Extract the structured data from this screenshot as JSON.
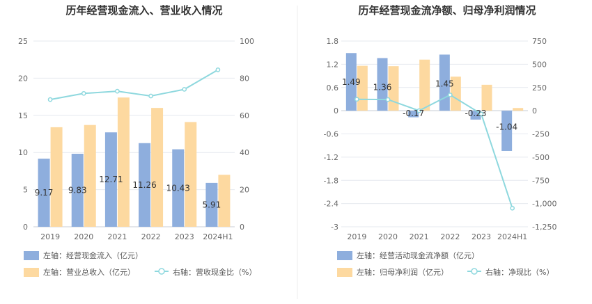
{
  "colors": {
    "blue": "#8eaedd",
    "orange": "#fdd9a0",
    "line": "#8ed8de",
    "grid": "#e6e9ef",
    "divider": "#eeeeee"
  },
  "chart_data": [
    {
      "type": "bar",
      "title": "历年经营现金流入、营业收入情况",
      "categories": [
        "2019",
        "2020",
        "2021",
        "2022",
        "2023",
        "2024H1"
      ],
      "y_left_ticks": [
        "25",
        "20",
        "15",
        "10",
        "5",
        "0"
      ],
      "y_right_ticks": [
        "100",
        "80",
        "60",
        "40",
        "20",
        "0"
      ],
      "ylim_left": [
        0,
        25
      ],
      "ylim_right": [
        0,
        100
      ],
      "series": [
        {
          "name": "左轴：经营现金流入（亿元）",
          "axis": "left",
          "kind": "bar",
          "values": [
            9.17,
            9.83,
            12.71,
            11.26,
            10.43,
            5.91
          ],
          "labels": [
            "9.17",
            "9.83",
            "12.71",
            "11.26",
            "10.43",
            "5.91"
          ]
        },
        {
          "name": "左轴：营业总收入（亿元）",
          "axis": "left",
          "kind": "bar",
          "values": [
            13.4,
            13.7,
            17.4,
            16.0,
            14.1,
            7.0
          ]
        },
        {
          "name": "右轴：营收现金比（%）",
          "axis": "right",
          "kind": "line",
          "values": [
            68.5,
            71.8,
            73.0,
            70.4,
            74.0,
            84.5
          ]
        }
      ]
    },
    {
      "type": "bar",
      "title": "历年经营现金流净额、归母净利润情况",
      "categories": [
        "2019",
        "2020",
        "2021",
        "2022",
        "2023",
        "2024H1"
      ],
      "y_left_ticks": [
        "1.8",
        "1.2",
        "0.6",
        "0",
        "-0.6",
        "-1.2",
        "-1.8",
        "-2.4",
        "-3"
      ],
      "y_right_ticks": [
        "750",
        "500",
        "250",
        "0",
        "-250",
        "-500",
        "-750",
        "-1,000",
        "-1,250"
      ],
      "ylim_left": [
        -3,
        1.8
      ],
      "ylim_right": [
        -1250,
        750
      ],
      "series": [
        {
          "name": "左轴：经营活动现金流净额（亿元）",
          "axis": "left",
          "kind": "bar",
          "values": [
            1.49,
            1.36,
            -0.17,
            1.45,
            -0.23,
            -1.04
          ],
          "labels": [
            "1.49",
            "1.36",
            "-0.17",
            "1.45",
            "-0.23",
            "-1.04"
          ]
        },
        {
          "name": "左轴：归母净利润（亿元）",
          "axis": "left",
          "kind": "bar",
          "values": [
            1.16,
            1.15,
            1.32,
            0.88,
            0.67,
            0.07
          ]
        },
        {
          "name": "右轴：净现比（%）",
          "axis": "right",
          "kind": "line",
          "values": [
            123,
            120,
            0,
            170,
            -35,
            -1050
          ]
        }
      ]
    }
  ]
}
